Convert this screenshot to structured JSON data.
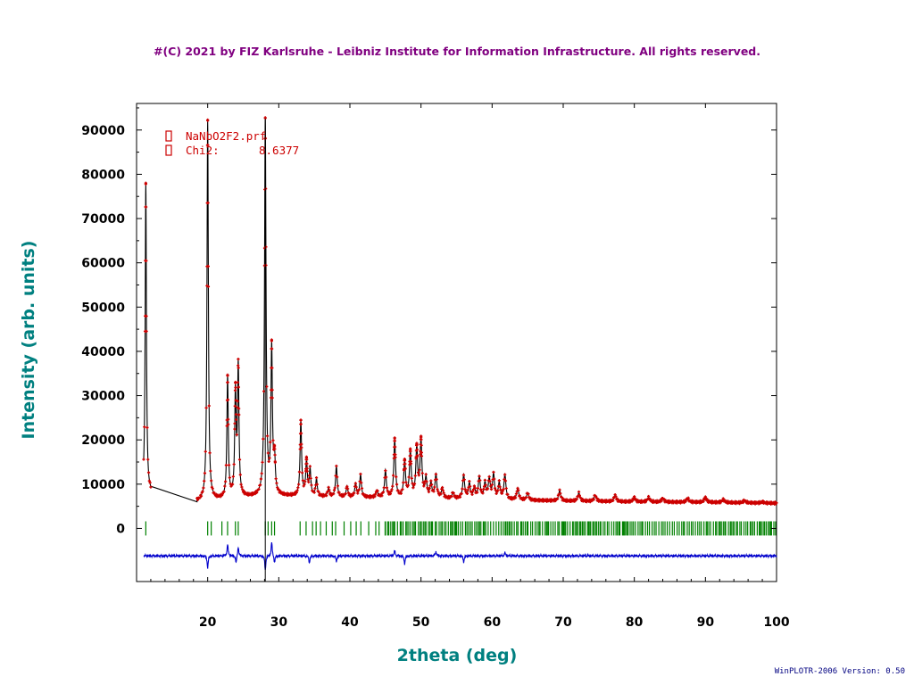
{
  "copyright": "#(C) 2021 by FIZ Karlsruhe - Leibniz Institute for Information Infrastructure.  All rights reserved.",
  "version": "WinPLOTR-2006 Version: 0.50",
  "chart_data": {
    "type": "line",
    "xlabel": "2theta (deg)",
    "ylabel": "Intensity (arb. units)",
    "xlim": [
      10,
      100
    ],
    "ylim": [
      -12000,
      96000
    ],
    "xticks": [
      20,
      30,
      40,
      50,
      60,
      70,
      80,
      90,
      100
    ],
    "yticks": [
      0,
      10000,
      20000,
      30000,
      40000,
      50000,
      60000,
      70000,
      80000,
      90000
    ],
    "legend": {
      "file": "NaNbO2F2.prf",
      "chi2_label": "Chi2:",
      "chi2_value": "8.6377",
      "placement": "top-left"
    },
    "colors": {
      "observed": "#cc0000",
      "calculated": "#000000",
      "difference": "#0000cc",
      "bragg": "#008000",
      "marker_line": "#000000"
    },
    "excluded_region": [
      12.0,
      18.5
    ],
    "marker_line_x": 28.1,
    "background": [
      [
        11.0,
        8200
      ],
      [
        12.0,
        8000
      ],
      [
        18.5,
        6000
      ],
      [
        25,
        7000
      ],
      [
        30,
        7300
      ],
      [
        40,
        7000
      ],
      [
        50,
        6800
      ],
      [
        60,
        6500
      ],
      [
        70,
        6200
      ],
      [
        80,
        6000
      ],
      [
        90,
        5900
      ],
      [
        100,
        5700
      ]
    ],
    "peaks": [
      [
        11.3,
        78000
      ],
      [
        20.0,
        92000
      ],
      [
        22.8,
        34000
      ],
      [
        23.9,
        30000
      ],
      [
        24.3,
        36000
      ],
      [
        28.1,
        92000
      ],
      [
        29.0,
        40000
      ],
      [
        29.4,
        15000
      ],
      [
        33.1,
        24000
      ],
      [
        33.9,
        15000
      ],
      [
        34.4,
        13000
      ],
      [
        35.3,
        11000
      ],
      [
        37.0,
        9000
      ],
      [
        38.1,
        14000
      ],
      [
        39.6,
        9500
      ],
      [
        40.8,
        10000
      ],
      [
        41.5,
        12000
      ],
      [
        43.8,
        8500
      ],
      [
        45.0,
        13000
      ],
      [
        46.3,
        20000
      ],
      [
        47.7,
        15000
      ],
      [
        48.5,
        17000
      ],
      [
        49.4,
        18000
      ],
      [
        50.0,
        19500
      ],
      [
        50.7,
        11000
      ],
      [
        51.4,
        10000
      ],
      [
        52.1,
        12000
      ],
      [
        53.0,
        9000
      ],
      [
        54.5,
        8000
      ],
      [
        56.0,
        12000
      ],
      [
        56.8,
        10000
      ],
      [
        57.5,
        9000
      ],
      [
        58.2,
        11500
      ],
      [
        59.0,
        10000
      ],
      [
        59.6,
        11000
      ],
      [
        60.2,
        12000
      ],
      [
        61.0,
        10000
      ],
      [
        61.8,
        12000
      ],
      [
        63.6,
        9000
      ],
      [
        65.0,
        8000
      ],
      [
        69.5,
        8500
      ],
      [
        72.2,
        8000
      ],
      [
        74.5,
        7500
      ],
      [
        77.3,
        7500
      ],
      [
        80.0,
        7000
      ],
      [
        82.0,
        7000
      ],
      [
        84.0,
        6800
      ],
      [
        87.5,
        6800
      ],
      [
        90.0,
        7000
      ],
      [
        92.5,
        6500
      ],
      [
        95.5,
        6300
      ],
      [
        98.0,
        6000
      ]
    ],
    "residual_baseline": -6200,
    "residual_features": [
      [
        20.0,
        -9000
      ],
      [
        22.8,
        -3500
      ],
      [
        24.0,
        -8000
      ],
      [
        24.3,
        -4000
      ],
      [
        28.1,
        -9500
      ],
      [
        29.0,
        -3000
      ],
      [
        29.4,
        -7800
      ],
      [
        34.3,
        -7800
      ],
      [
        38.1,
        -7500
      ],
      [
        46.3,
        -5000
      ],
      [
        47.7,
        -8000
      ],
      [
        52.1,
        -5200
      ],
      [
        56.0,
        -7600
      ],
      [
        61.8,
        -5500
      ]
    ]
  }
}
